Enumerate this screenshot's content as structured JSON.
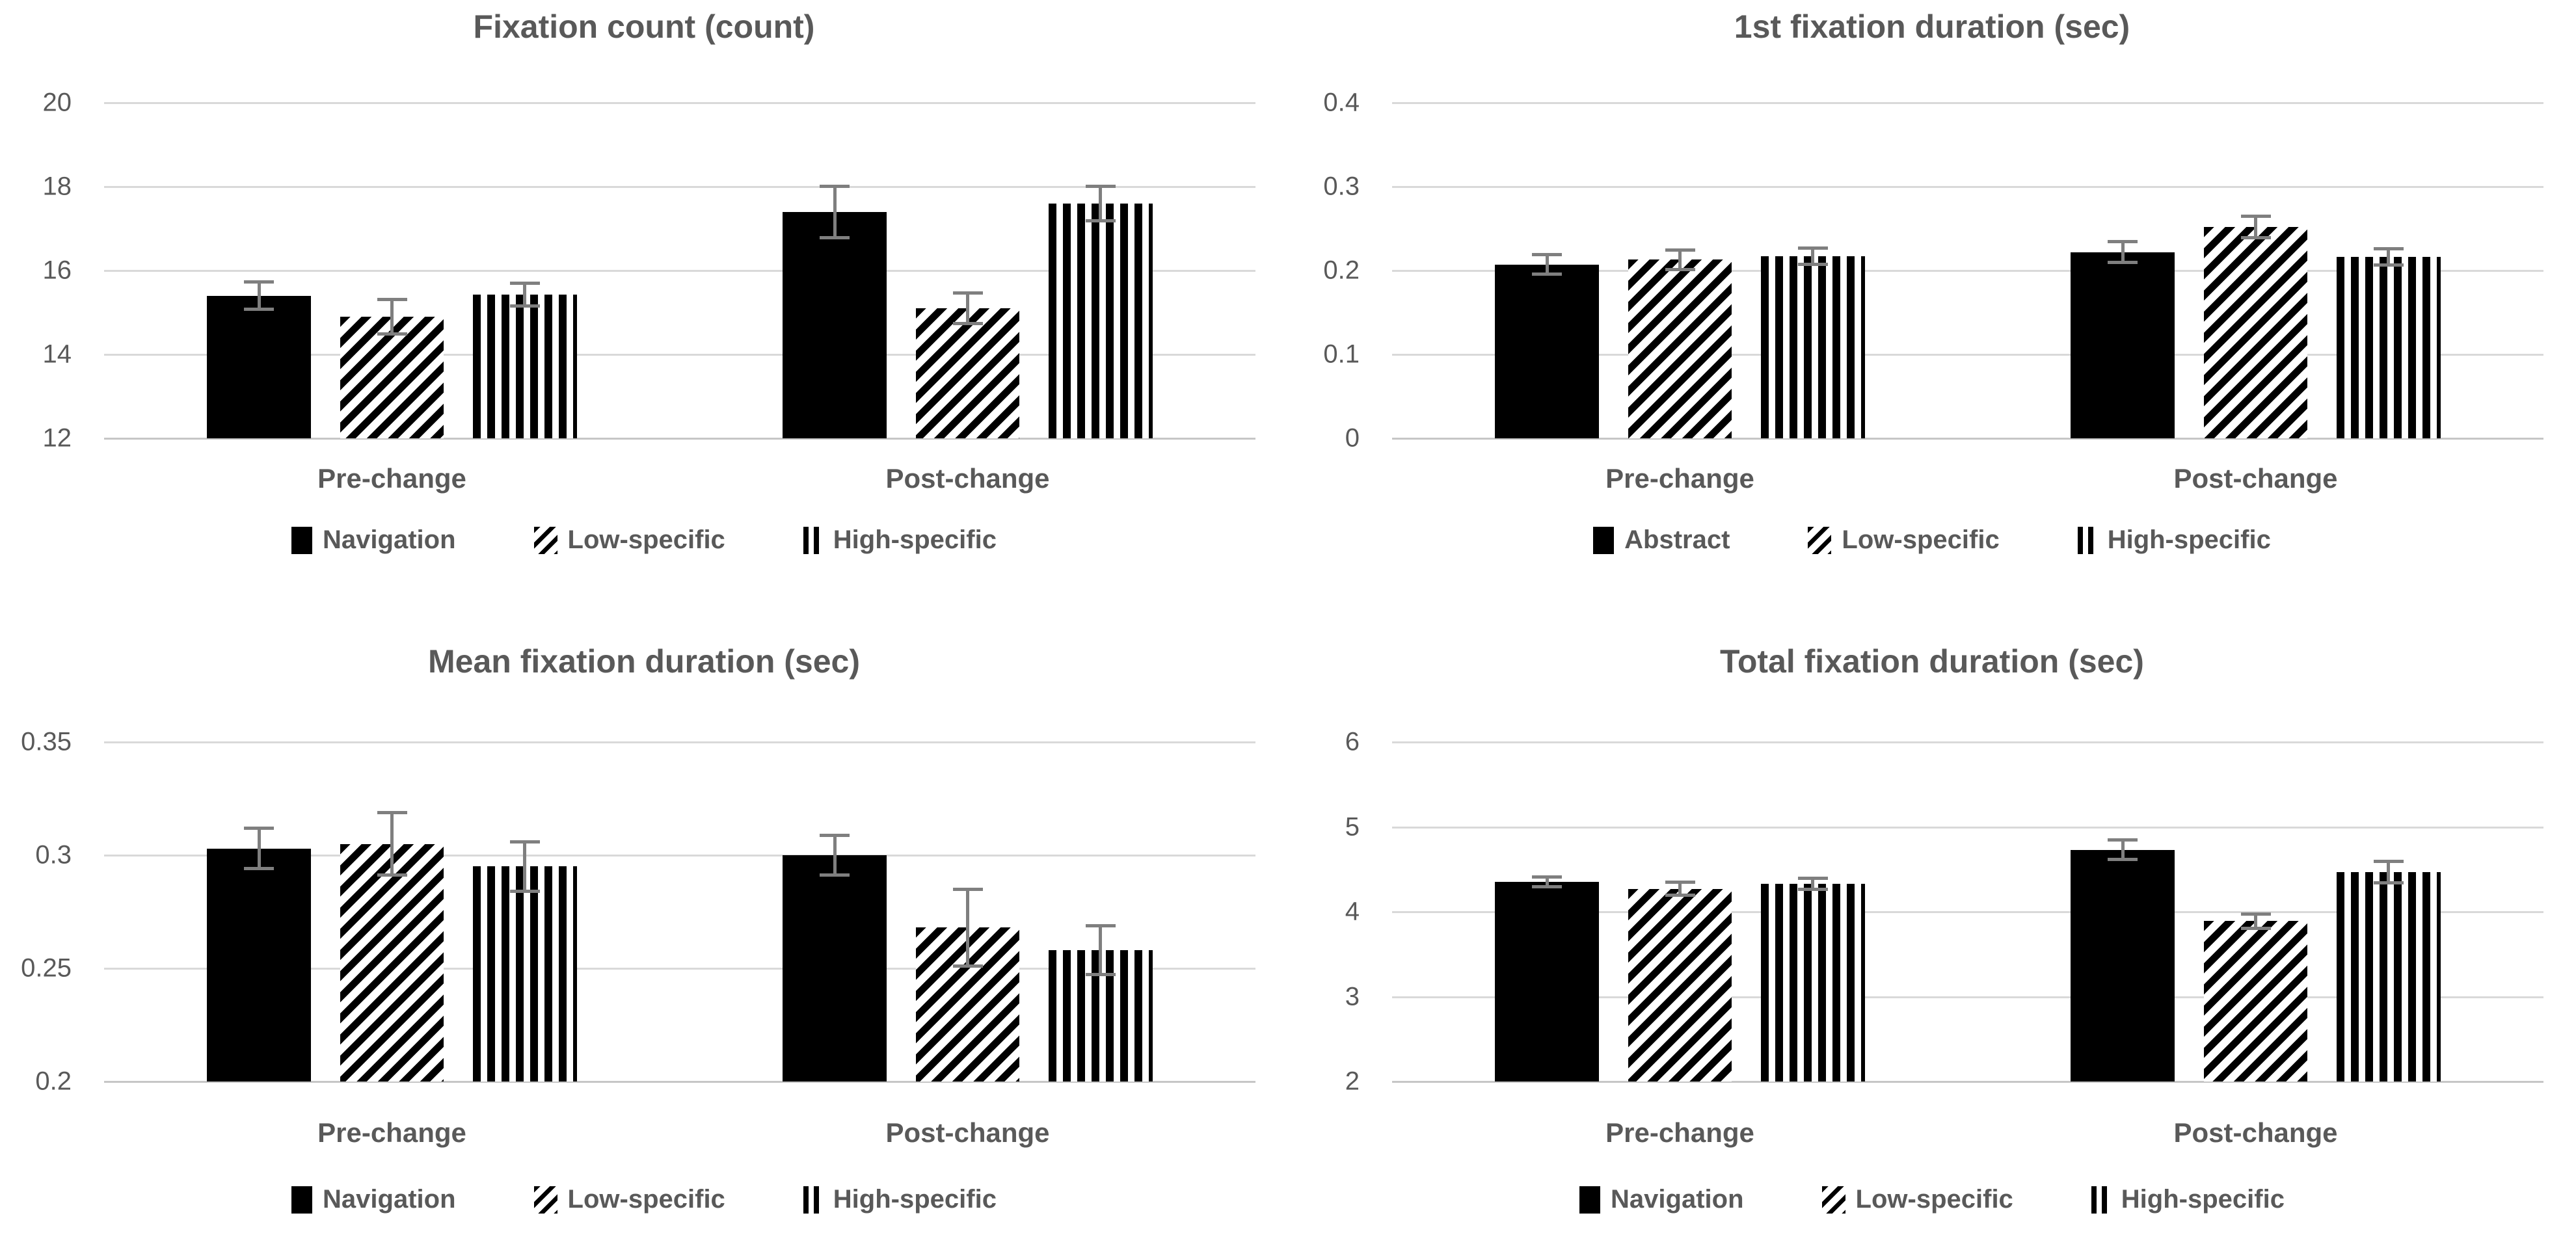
{
  "style": {
    "background": "#ffffff",
    "title_color": "#595959",
    "label_color": "#595959",
    "grid_color": "#d9d9d9",
    "bar_color": "#000000",
    "error_bar_color": "#7f7f7f"
  },
  "chart_data": [
    {
      "type": "bar",
      "title": "Fixation count (count)",
      "categories": [
        "Pre-change",
        "Post-change"
      ],
      "series": [
        {
          "name": "Navigation",
          "pattern": "solid",
          "values": [
            15.4,
            17.4
          ],
          "errors": [
            0.33,
            0.62
          ]
        },
        {
          "name": "Low-specific",
          "pattern": "diagonal-hatch",
          "values": [
            14.9,
            15.1
          ],
          "errors": [
            0.42,
            0.37
          ]
        },
        {
          "name": "High-specific",
          "pattern": "vertical-stripes",
          "values": [
            15.43,
            17.6
          ],
          "errors": [
            0.28,
            0.42
          ]
        }
      ],
      "ylim": [
        12,
        20
      ],
      "yticks": [
        20,
        18,
        16,
        14,
        12
      ],
      "grid": true,
      "legend_position": "bottom",
      "layout": {
        "group_centers": [
          0.25,
          0.75
        ],
        "bar_width": 0.09,
        "bar_step": 0.1155
      }
    },
    {
      "type": "bar",
      "title": "1st fixation duration (sec)",
      "categories": [
        "Pre-change",
        "Post-change"
      ],
      "series": [
        {
          "name": "Abstract",
          "pattern": "solid",
          "values": [
            0.207,
            0.222
          ],
          "errors": [
            0.012,
            0.013
          ]
        },
        {
          "name": "Low-specific",
          "pattern": "diagonal-hatch",
          "values": [
            0.213,
            0.252
          ],
          "errors": [
            0.012,
            0.013
          ]
        },
        {
          "name": "High-specific",
          "pattern": "vertical-stripes",
          "values": [
            0.217,
            0.216
          ],
          "errors": [
            0.01,
            0.01
          ]
        }
      ],
      "ylim": [
        0,
        0.4
      ],
      "yticks": [
        0.4,
        0.3,
        0.2,
        0.1,
        0
      ],
      "grid": true,
      "legend_position": "bottom",
      "layout": {
        "group_centers": [
          0.25,
          0.75
        ],
        "bar_width": 0.09,
        "bar_step": 0.1155
      }
    },
    {
      "type": "bar",
      "title": "Mean fixation duration (sec)",
      "categories": [
        "Pre-change",
        "Post-change"
      ],
      "series": [
        {
          "name": "Navigation",
          "pattern": "solid",
          "values": [
            0.303,
            0.3
          ],
          "errors": [
            0.009,
            0.009
          ]
        },
        {
          "name": "Low-specific",
          "pattern": "diagonal-hatch",
          "values": [
            0.305,
            0.268
          ],
          "errors": [
            0.014,
            0.017
          ]
        },
        {
          "name": "High-specific",
          "pattern": "vertical-stripes",
          "values": [
            0.295,
            0.258
          ],
          "errors": [
            0.011,
            0.011
          ]
        }
      ],
      "ylim": [
        0.2,
        0.35
      ],
      "yticks": [
        0.35,
        0.3,
        0.25,
        0.2
      ],
      "grid": true,
      "legend_position": "bottom",
      "layout": {
        "group_centers": [
          0.25,
          0.75
        ],
        "bar_width": 0.09,
        "bar_step": 0.1155
      }
    },
    {
      "type": "bar",
      "title": "Total fixation duration (sec)",
      "categories": [
        "Pre-change",
        "Post-change"
      ],
      "series": [
        {
          "name": "Navigation",
          "pattern": "solid",
          "values": [
            4.35,
            4.73
          ],
          "errors": [
            0.06,
            0.12
          ]
        },
        {
          "name": "Low-specific",
          "pattern": "diagonal-hatch",
          "values": [
            4.27,
            3.89
          ],
          "errors": [
            0.08,
            0.09
          ]
        },
        {
          "name": "High-specific",
          "pattern": "vertical-stripes",
          "values": [
            4.33,
            4.47
          ],
          "errors": [
            0.07,
            0.13
          ]
        }
      ],
      "ylim": [
        2,
        6
      ],
      "yticks": [
        6,
        5,
        4,
        3,
        2
      ],
      "grid": true,
      "legend_position": "bottom",
      "layout": {
        "group_centers": [
          0.25,
          0.75
        ],
        "bar_width": 0.09,
        "bar_step": 0.1155
      }
    }
  ]
}
